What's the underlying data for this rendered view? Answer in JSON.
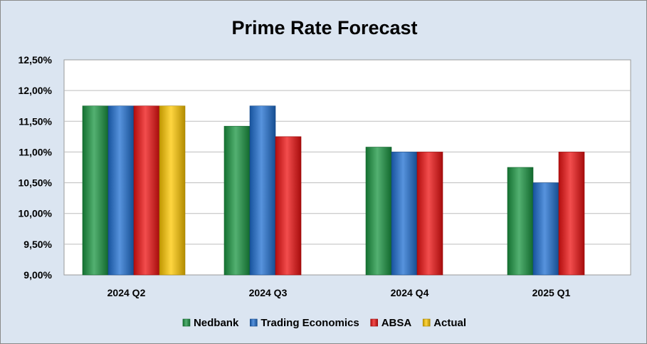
{
  "chart_data": {
    "type": "bar",
    "title": "Prime Rate Forecast",
    "xlabel": "",
    "ylabel": "",
    "categories": [
      "2024 Q2",
      "2024 Q3",
      "2024 Q4",
      "2025 Q1"
    ],
    "ylim": [
      9.0,
      12.5
    ],
    "yticks": [
      9.0,
      9.5,
      10.0,
      10.5,
      11.0,
      11.5,
      12.0,
      12.5
    ],
    "ytick_labels": [
      "9,00%",
      "9,50%",
      "10,00%",
      "10,50%",
      "11,00%",
      "11,50%",
      "12,00%",
      "12,50%"
    ],
    "grid": true,
    "legend_position": "bottom",
    "series": [
      {
        "name": "Nedbank",
        "color": "#1a9641",
        "values": [
          11.75,
          11.42,
          11.08,
          10.75
        ]
      },
      {
        "name": "Trading Economics",
        "color": "#1f6fd1",
        "values": [
          11.75,
          11.75,
          11.0,
          10.5
        ]
      },
      {
        "name": "ABSA",
        "color": "#ee1111",
        "values": [
          11.75,
          11.25,
          11.0,
          11.0
        ]
      },
      {
        "name": "Actual",
        "color": "#ffc800",
        "values": [
          11.75,
          null,
          null,
          null
        ]
      }
    ]
  }
}
